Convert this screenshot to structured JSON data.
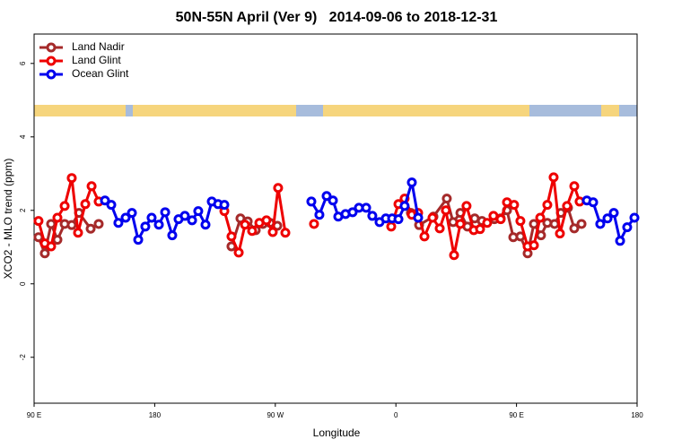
{
  "chart_data": {
    "type": "line",
    "title": "50N-55N April (Ver 9)   2014-09-06 to 2018-12-31",
    "x_label": "Longitude",
    "y_label": "XCO2 - MLO trend (ppm)",
    "xlim": [
      90,
      540
    ],
    "ylim": [
      -3.25,
      6.8
    ],
    "xticks": [
      {
        "value": 90,
        "label": "90 E"
      },
      180,
      {
        "value": 270,
        "label": "90 W"
      },
      {
        "value": 360,
        "label": "0"
      },
      {
        "value": 450,
        "label": "90 E"
      },
      {
        "value": 540,
        "label": "180"
      }
    ],
    "yticks": [
      -2,
      0,
      2,
      4,
      6
    ],
    "legend": "top-left",
    "series": [
      {
        "name": "Land Nadir",
        "color": "#a52a2a",
        "x": [
          93.3,
          98.0,
          102.7,
          107.4,
          112.8,
          118.1,
          123.5,
          132.2,
          138.2,
          null,
          237.3,
          244.0,
          249.4,
          255.4,
          260.7,
          266.1,
          271.5,
          null,
          371.2,
          377.3,
          388.0,
          398.0,
          402.7,
          408.1,
          413.4,
          418.8,
          424.2,
          433.5,
          438.2,
          442.9,
          447.6,
          452.9,
          458.3,
          463.0,
          468.3,
          473.0,
          478.4,
          483.1,
          488.4,
          493.1,
          498.5
        ],
        "values": [
          1.27,
          0.83,
          1.63,
          1.2,
          1.63,
          1.6,
          1.93,
          1.5,
          1.63,
          null,
          1.02,
          1.78,
          1.7,
          1.46,
          1.63,
          1.66,
          1.58,
          null,
          1.93,
          1.6,
          1.83,
          2.32,
          1.68,
          1.93,
          1.56,
          1.78,
          1.71,
          1.76,
          1.78,
          2.0,
          1.27,
          1.29,
          0.83,
          1.63,
          1.32,
          1.66,
          1.63,
          1.93,
          2.07,
          1.51,
          1.63
        ]
      },
      {
        "name": "Land Glint",
        "color": "#ee0000",
        "x": [
          93.3,
          98.0,
          102.7,
          107.4,
          112.8,
          118.1,
          122.8,
          128.2,
          132.9,
          138.2,
          null,
          232.0,
          237.3,
          242.7,
          247.4,
          252.7,
          258.1,
          263.4,
          268.1,
          272.1,
          277.5,
          null,
          298.9,
          null,
          356.5,
          361.9,
          366.5,
          371.9,
          376.6,
          381.3,
          387.3,
          392.7,
          397.3,
          403.4,
          408.1,
          412.7,
          418.1,
          422.8,
          428.1,
          432.8,
          438.2,
          442.9,
          448.2,
          452.9,
          458.3,
          463.0,
          467.7,
          473.0,
          477.7,
          482.4,
          487.7,
          493.1,
          497.1
        ],
        "values": [
          1.71,
          1.1,
          1.02,
          1.8,
          2.12,
          2.88,
          1.39,
          2.17,
          2.66,
          2.24,
          null,
          1.98,
          1.29,
          0.85,
          1.61,
          1.44,
          1.66,
          1.73,
          1.41,
          2.61,
          1.39,
          null,
          1.63,
          null,
          1.56,
          2.17,
          2.32,
          1.88,
          1.93,
          1.29,
          1.8,
          1.51,
          2.0,
          0.78,
          1.63,
          2.12,
          1.46,
          1.49,
          1.66,
          1.85,
          1.76,
          2.22,
          2.15,
          1.71,
          1.02,
          1.05,
          1.8,
          2.15,
          2.9,
          1.37,
          2.12,
          2.66,
          2.24
        ]
      },
      {
        "name": "Ocean Glint",
        "color": "#0000ee",
        "x": [
          142.9,
          147.6,
          152.9,
          158.3,
          163.0,
          167.7,
          173.0,
          177.7,
          183.1,
          187.8,
          193.1,
          197.8,
          202.5,
          207.9,
          212.5,
          217.9,
          222.6,
          227.3,
          232.0,
          null,
          296.9,
          302.9,
          308.3,
          313.0,
          317.0,
          322.4,
          327.7,
          332.4,
          337.8,
          342.4,
          347.8,
          352.5,
          357.2,
          361.9,
          366.5,
          371.9,
          376.6,
          null,
          502.5,
          507.2,
          512.5,
          517.9,
          522.6,
          527.3,
          532.6,
          538.0
        ],
        "values": [
          2.27,
          2.15,
          1.66,
          1.8,
          1.93,
          1.2,
          1.56,
          1.8,
          1.61,
          1.95,
          1.32,
          1.76,
          1.85,
          1.73,
          1.98,
          1.61,
          2.24,
          2.17,
          2.15,
          null,
          2.24,
          1.88,
          2.39,
          2.27,
          1.83,
          1.9,
          1.95,
          2.07,
          2.07,
          1.85,
          1.68,
          1.78,
          1.78,
          1.76,
          2.12,
          2.76,
          1.8,
          null,
          2.27,
          2.22,
          1.63,
          1.78,
          1.93,
          1.17,
          1.54,
          1.8
        ]
      }
    ]
  }
}
